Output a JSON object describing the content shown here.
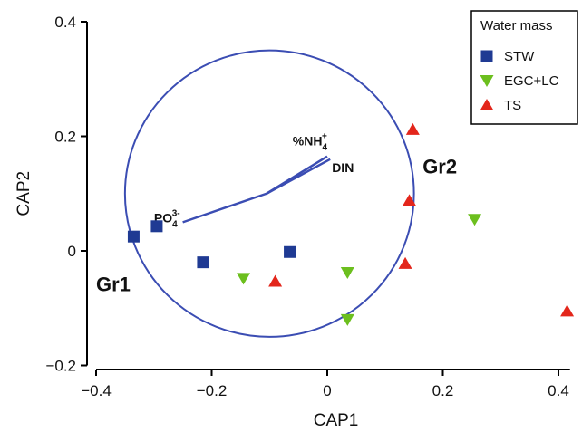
{
  "chart_data": {
    "type": "scatter",
    "title": "",
    "xlabel": "CAP1",
    "ylabel": "CAP2",
    "xlim": [
      -0.4,
      0.42
    ],
    "ylim": [
      -0.2,
      0.4
    ],
    "x_ticks": [
      {
        "value": -0.4,
        "label": "−0.4"
      },
      {
        "value": -0.2,
        "label": "−0.2"
      },
      {
        "value": 0,
        "label": "0"
      },
      {
        "value": 0.2,
        "label": "0.2"
      },
      {
        "value": 0.4,
        "label": "0.4"
      }
    ],
    "y_ticks": [
      {
        "value": -0.2,
        "label": "−0.2"
      },
      {
        "value": 0,
        "label": "0"
      },
      {
        "value": 0.2,
        "label": "0.2"
      },
      {
        "value": 0.4,
        "label": "0.4"
      }
    ],
    "grid": false,
    "legend": {
      "title": "Water mass",
      "position": "top-right"
    },
    "series": [
      {
        "name": "STW",
        "marker": "square",
        "color": "#1f3a93",
        "points": [
          {
            "x": -0.335,
            "y": 0.025
          },
          {
            "x": -0.295,
            "y": 0.043
          },
          {
            "x": -0.215,
            "y": -0.02
          },
          {
            "x": -0.065,
            "y": -0.002
          }
        ]
      },
      {
        "name": "EGC+LC",
        "marker": "triangle-down",
        "color": "#6cbf1e",
        "points": [
          {
            "x": -0.145,
            "y": -0.048
          },
          {
            "x": 0.035,
            "y": -0.038
          },
          {
            "x": 0.035,
            "y": -0.12
          },
          {
            "x": 0.255,
            "y": 0.055
          }
        ]
      },
      {
        "name": "TS",
        "marker": "triangle-up",
        "color": "#e3261b",
        "points": [
          {
            "x": -0.09,
            "y": -0.053
          },
          {
            "x": 0.135,
            "y": -0.022
          },
          {
            "x": 0.142,
            "y": 0.088
          },
          {
            "x": 0.148,
            "y": 0.212
          },
          {
            "x": 0.415,
            "y": -0.105
          }
        ]
      }
    ],
    "correlation_circle": {
      "center": [
        -0.1,
        0.1
      ],
      "radius": 0.25,
      "color": "#3b4db3"
    },
    "vectors": [
      {
        "label": "PO",
        "sub": "4",
        "sup": "3-",
        "x": -0.25,
        "y": 0.05,
        "color": "#3b4db3"
      },
      {
        "label": "%NH",
        "sub": "4",
        "sup": "+",
        "x": 0.0,
        "y": 0.165,
        "color": "#3b4db3"
      },
      {
        "label": "DIN",
        "sub": "",
        "sup": "",
        "x": 0.005,
        "y": 0.16,
        "color": "#3b4db3"
      }
    ],
    "group_labels": [
      {
        "text": "Gr1",
        "x": -0.4,
        "y": -0.07
      },
      {
        "text": "Gr2",
        "x": 0.165,
        "y": 0.135
      }
    ]
  }
}
